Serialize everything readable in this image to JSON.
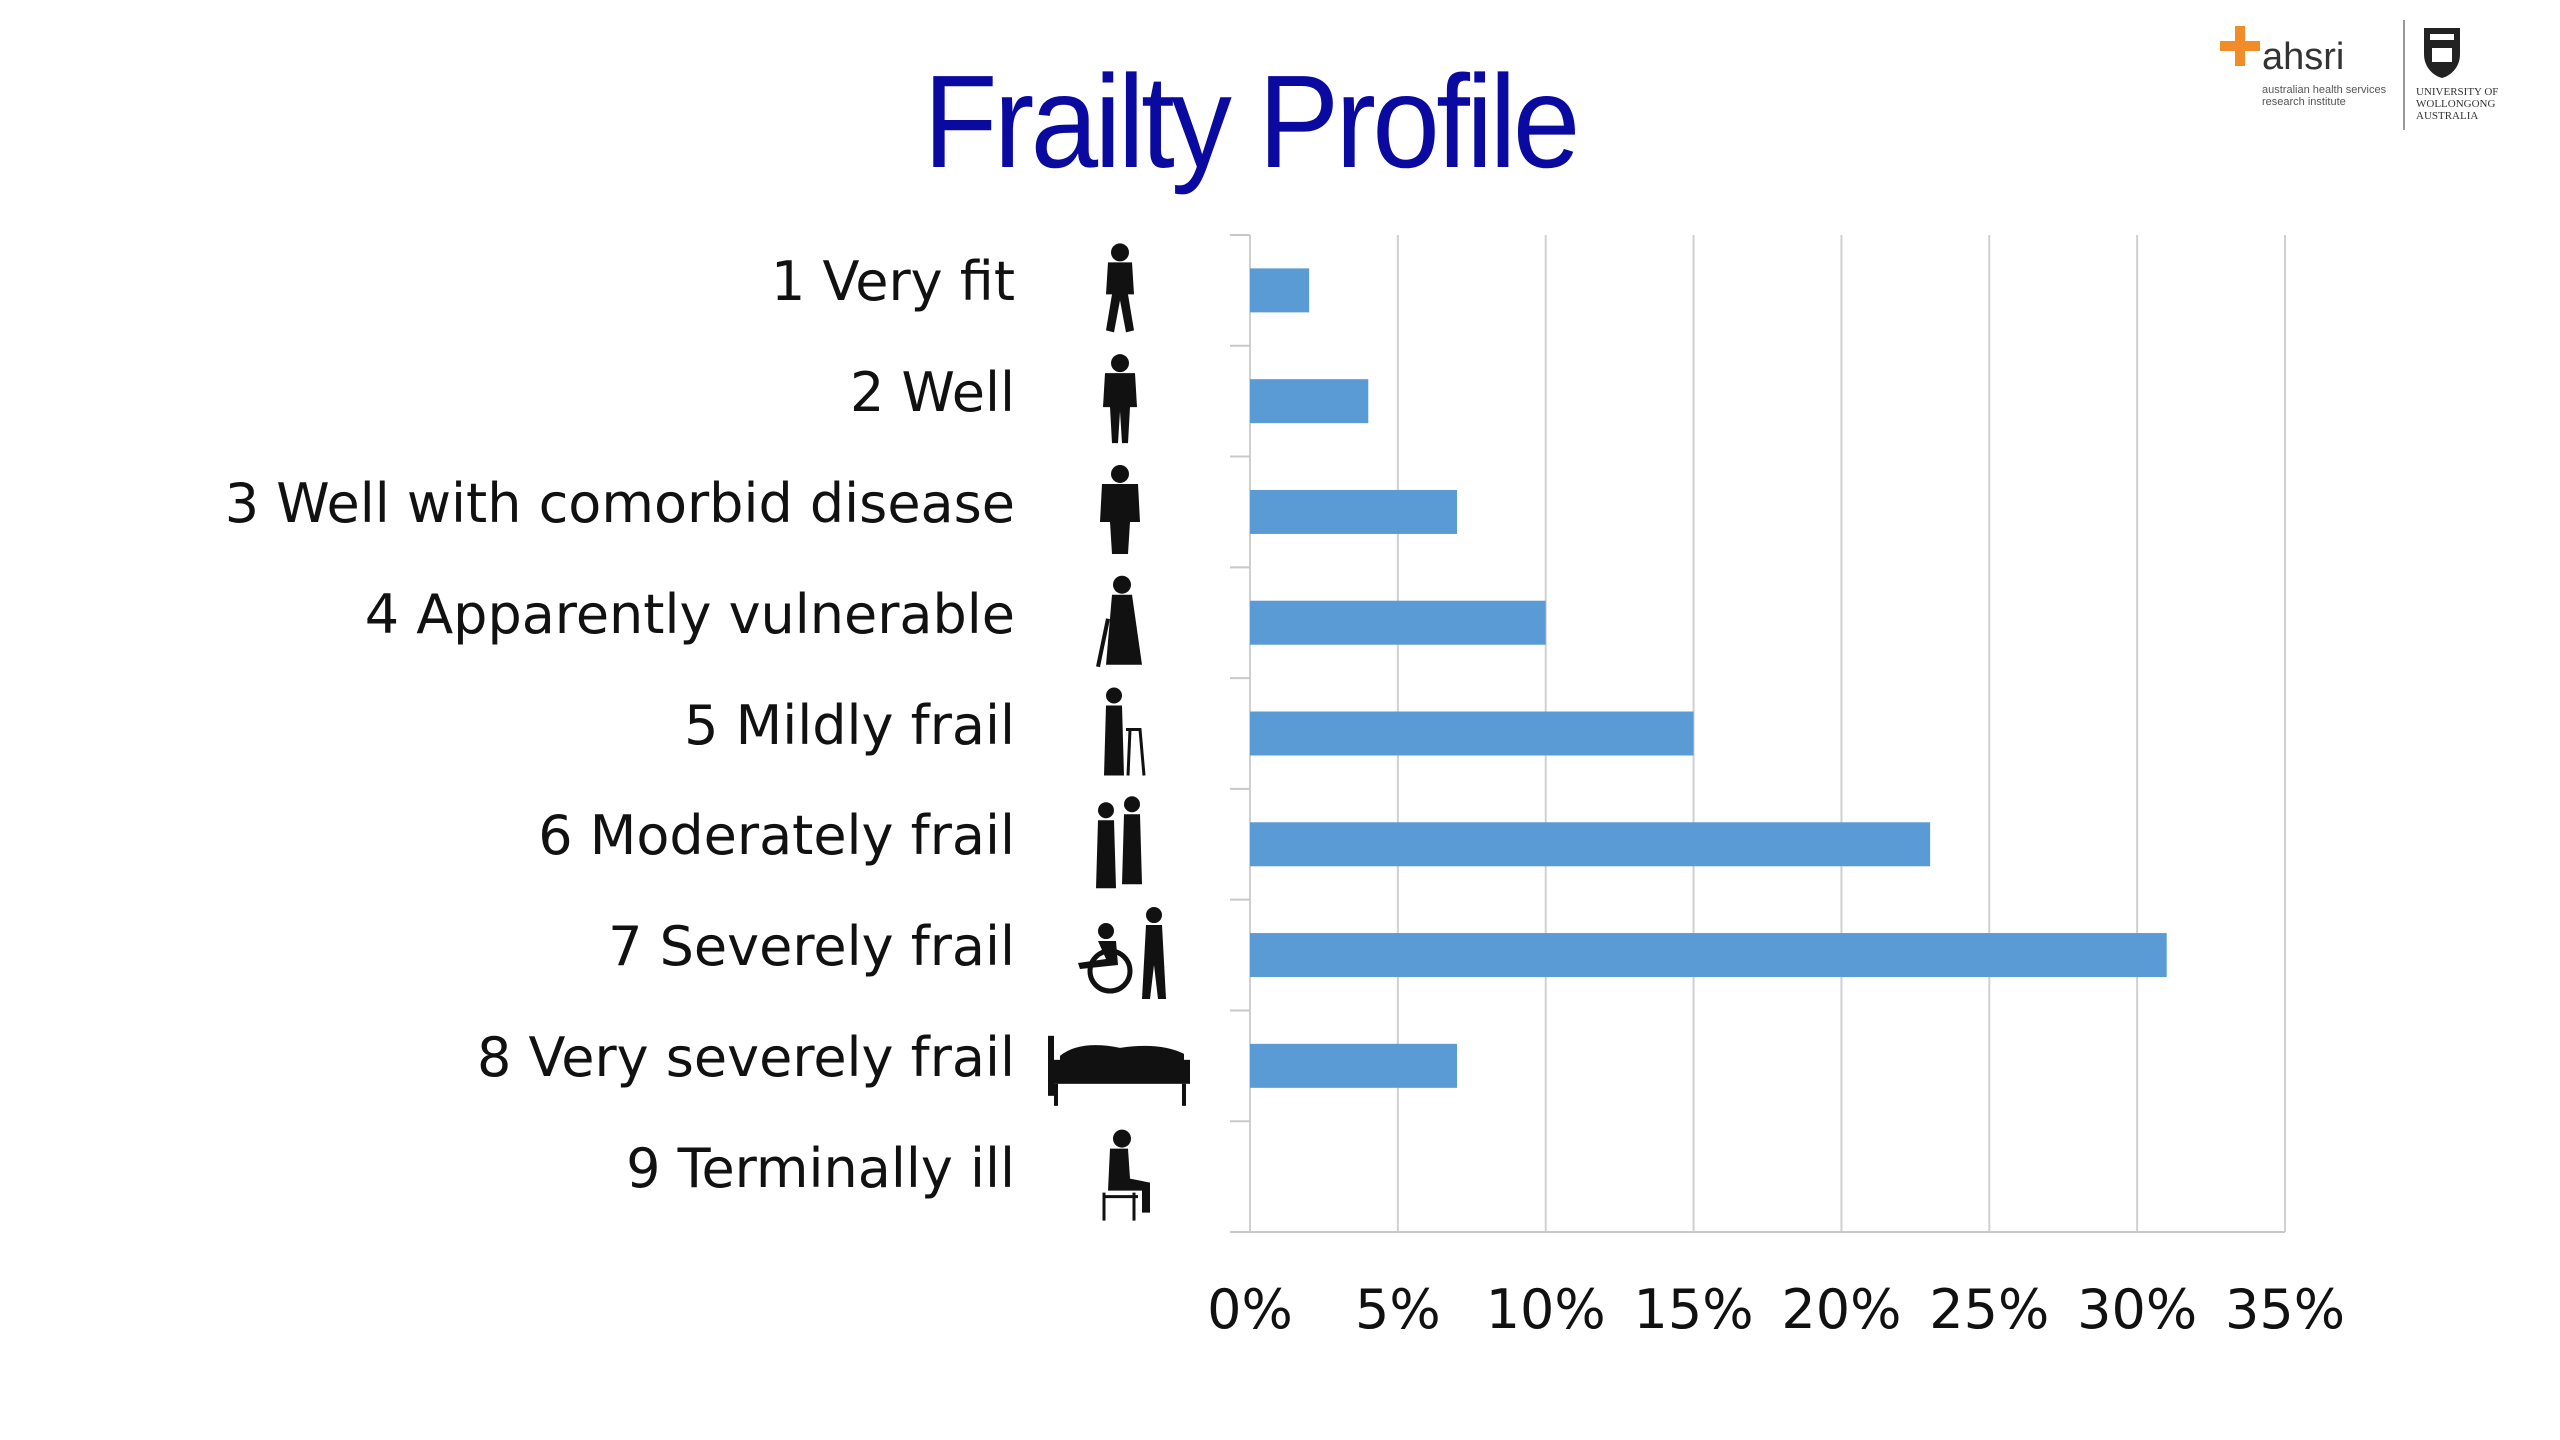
{
  "title": "Frailty Profile",
  "logos": {
    "ahsri_name": "ahsri",
    "ahsri_tagline": "australian health services research institute",
    "university_name": "UNIVERSITY OF WOLLONGONG AUSTRALIA"
  },
  "colors": {
    "title": "#0a0aa0",
    "bar": "#5b9bd5",
    "grid": "#d0d0d0",
    "ahsri_accent": "#f28c28"
  },
  "chart_data": {
    "type": "bar",
    "orientation": "horizontal",
    "title": "Frailty Profile",
    "categories": [
      "1 Very fit",
      "2 Well",
      "3 Well with comorbid disease",
      "4 Apparently vulnerable",
      "5 Mildly frail",
      "6 Moderately frail",
      "7 Severely frail",
      "8 Very severely frail",
      "9 Terminally ill"
    ],
    "category_icons": [
      "person-walking-icon",
      "person-standing-icon",
      "person-standing-heavy-icon",
      "person-with-cane-icon",
      "person-with-walker-icon",
      "person-assisted-walker-icon",
      "person-in-wheelchair-icon",
      "person-bedridden-icon",
      "person-seated-icon"
    ],
    "values": [
      2,
      4,
      7,
      10,
      15,
      23,
      31,
      7,
      0
    ],
    "xlim": [
      0,
      35
    ],
    "x_ticks": [
      "0%",
      "5%",
      "10%",
      "15%",
      "20%",
      "25%",
      "30%",
      "35%"
    ],
    "xlabel": "",
    "ylabel": "",
    "grid": "vertical",
    "legend": "none"
  }
}
